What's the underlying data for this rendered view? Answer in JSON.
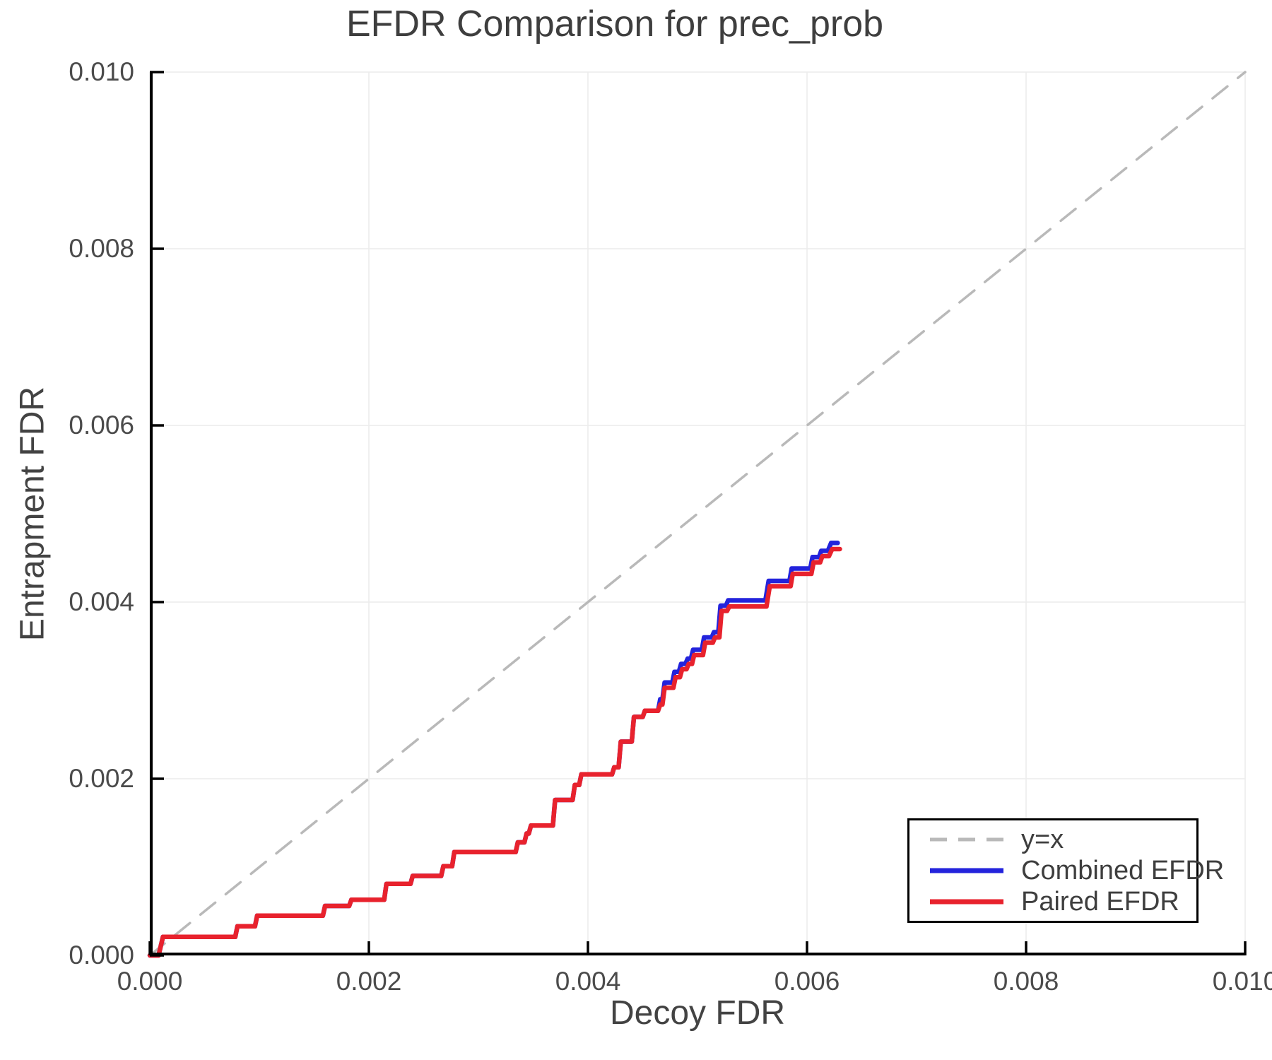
{
  "chart_data": {
    "type": "line",
    "title": "EFDR Comparison for prec_prob",
    "xlabel": "Decoy FDR",
    "ylabel": "Entrapment FDR",
    "xlim": [
      0,
      0.01
    ],
    "ylim": [
      0,
      0.01
    ],
    "xticks": [
      0,
      0.002,
      0.004,
      0.006,
      0.008,
      0.01
    ],
    "yticks": [
      0,
      0.002,
      0.004,
      0.006,
      0.008,
      0.01
    ],
    "xtick_labels": [
      "0.000",
      "0.002",
      "0.004",
      "0.006",
      "0.008",
      "0.010"
    ],
    "ytick_labels": [
      "0.000",
      "0.002",
      "0.004",
      "0.006",
      "0.008",
      "0.010"
    ],
    "grid": true,
    "legend_position": "bottom-right",
    "colors": {
      "grid": "#ececec",
      "spine": "#000000",
      "identity": "#b9b9b9",
      "combined": "#2323dc",
      "paired": "#e8222d",
      "text": "#3e3e3e"
    },
    "series": [
      {
        "name": "y=x",
        "style": "dashed",
        "color": "#b9b9b9",
        "points": [
          [
            0,
            0
          ],
          [
            0.01,
            0.01
          ]
        ]
      },
      {
        "name": "Combined EFDR",
        "style": "solid",
        "color": "#2323dc",
        "points": [
          [
            0.0,
            0.0
          ],
          [
            8e-05,
            0.0
          ],
          [
            0.00012,
            0.00021
          ],
          [
            0.00078,
            0.00021
          ],
          [
            0.0008,
            0.00033
          ],
          [
            0.00096,
            0.00033
          ],
          [
            0.00098,
            0.00045
          ],
          [
            0.00158,
            0.00045
          ],
          [
            0.0016,
            0.00056
          ],
          [
            0.00182,
            0.00056
          ],
          [
            0.00184,
            0.00063
          ],
          [
            0.00214,
            0.00063
          ],
          [
            0.00216,
            0.00081
          ],
          [
            0.00238,
            0.00081
          ],
          [
            0.0024,
            0.0009
          ],
          [
            0.00266,
            0.0009
          ],
          [
            0.00268,
            0.00101
          ],
          [
            0.00276,
            0.00101
          ],
          [
            0.00278,
            0.00117
          ],
          [
            0.00334,
            0.00117
          ],
          [
            0.00336,
            0.00128
          ],
          [
            0.00342,
            0.00128
          ],
          [
            0.00344,
            0.00138
          ],
          [
            0.00346,
            0.00138
          ],
          [
            0.00348,
            0.00147
          ],
          [
            0.00368,
            0.00147
          ],
          [
            0.0037,
            0.00176
          ],
          [
            0.00386,
            0.00176
          ],
          [
            0.00388,
            0.00193
          ],
          [
            0.00392,
            0.00193
          ],
          [
            0.00394,
            0.00205
          ],
          [
            0.00422,
            0.00205
          ],
          [
            0.00424,
            0.00213
          ],
          [
            0.00428,
            0.00213
          ],
          [
            0.0043,
            0.00242
          ],
          [
            0.0044,
            0.00242
          ],
          [
            0.00442,
            0.0027
          ],
          [
            0.0045,
            0.0027
          ],
          [
            0.00452,
            0.00277
          ],
          [
            0.00464,
            0.00277
          ],
          [
            0.00466,
            0.0029
          ],
          [
            0.00468,
            0.0029
          ],
          [
            0.0047,
            0.00309
          ],
          [
            0.00477,
            0.00309
          ],
          [
            0.00479,
            0.00321
          ],
          [
            0.00483,
            0.00321
          ],
          [
            0.00485,
            0.0033
          ],
          [
            0.00489,
            0.0033
          ],
          [
            0.00491,
            0.00336
          ],
          [
            0.00494,
            0.00336
          ],
          [
            0.00496,
            0.00346
          ],
          [
            0.00504,
            0.00346
          ],
          [
            0.00506,
            0.0036
          ],
          [
            0.00513,
            0.0036
          ],
          [
            0.00515,
            0.00366
          ],
          [
            0.00519,
            0.00366
          ],
          [
            0.00521,
            0.00396
          ],
          [
            0.00526,
            0.00396
          ],
          [
            0.00528,
            0.00402
          ],
          [
            0.00562,
            0.00402
          ],
          [
            0.00565,
            0.00424
          ],
          [
            0.00584,
            0.00424
          ],
          [
            0.00586,
            0.00438
          ],
          [
            0.00603,
            0.00438
          ],
          [
            0.00605,
            0.00451
          ],
          [
            0.00611,
            0.00451
          ],
          [
            0.00613,
            0.00458
          ],
          [
            0.00619,
            0.00458
          ],
          [
            0.00622,
            0.00467
          ],
          [
            0.00628,
            0.00467
          ]
        ]
      },
      {
        "name": "Paired EFDR",
        "style": "solid",
        "color": "#e8222d",
        "points": [
          [
            0.0,
            0.0
          ],
          [
            8e-05,
            0.0
          ],
          [
            0.00012,
            0.00021
          ],
          [
            0.00078,
            0.00021
          ],
          [
            0.0008,
            0.00033
          ],
          [
            0.00096,
            0.00033
          ],
          [
            0.00098,
            0.00045
          ],
          [
            0.00158,
            0.00045
          ],
          [
            0.0016,
            0.00056
          ],
          [
            0.00182,
            0.00056
          ],
          [
            0.00184,
            0.00063
          ],
          [
            0.00214,
            0.00063
          ],
          [
            0.00216,
            0.00081
          ],
          [
            0.00238,
            0.00081
          ],
          [
            0.0024,
            0.0009
          ],
          [
            0.00266,
            0.0009
          ],
          [
            0.00268,
            0.00101
          ],
          [
            0.00276,
            0.00101
          ],
          [
            0.00278,
            0.00117
          ],
          [
            0.00334,
            0.00117
          ],
          [
            0.00336,
            0.00128
          ],
          [
            0.00342,
            0.00128
          ],
          [
            0.00344,
            0.00138
          ],
          [
            0.00346,
            0.00138
          ],
          [
            0.00348,
            0.00147
          ],
          [
            0.00368,
            0.00147
          ],
          [
            0.0037,
            0.00176
          ],
          [
            0.00386,
            0.00176
          ],
          [
            0.00388,
            0.00193
          ],
          [
            0.00392,
            0.00193
          ],
          [
            0.00394,
            0.00205
          ],
          [
            0.00422,
            0.00205
          ],
          [
            0.00424,
            0.00213
          ],
          [
            0.00428,
            0.00213
          ],
          [
            0.0043,
            0.00242
          ],
          [
            0.0044,
            0.00242
          ],
          [
            0.00442,
            0.0027
          ],
          [
            0.0045,
            0.0027
          ],
          [
            0.00452,
            0.00277
          ],
          [
            0.00464,
            0.00277
          ],
          [
            0.00466,
            0.00284
          ],
          [
            0.00468,
            0.00284
          ],
          [
            0.0047,
            0.00303
          ],
          [
            0.00478,
            0.00303
          ],
          [
            0.0048,
            0.00315
          ],
          [
            0.00484,
            0.00315
          ],
          [
            0.00486,
            0.00324
          ],
          [
            0.0049,
            0.00324
          ],
          [
            0.00492,
            0.0033
          ],
          [
            0.00495,
            0.0033
          ],
          [
            0.00497,
            0.0034
          ],
          [
            0.00505,
            0.0034
          ],
          [
            0.00507,
            0.00354
          ],
          [
            0.00514,
            0.00354
          ],
          [
            0.00516,
            0.0036
          ],
          [
            0.0052,
            0.0036
          ],
          [
            0.00522,
            0.0039
          ],
          [
            0.00527,
            0.0039
          ],
          [
            0.00529,
            0.00395
          ],
          [
            0.00563,
            0.00395
          ],
          [
            0.00566,
            0.00418
          ],
          [
            0.00585,
            0.00418
          ],
          [
            0.00587,
            0.00432
          ],
          [
            0.00604,
            0.00432
          ],
          [
            0.00606,
            0.00445
          ],
          [
            0.00612,
            0.00445
          ],
          [
            0.00614,
            0.00452
          ],
          [
            0.0062,
            0.00452
          ],
          [
            0.00623,
            0.0046
          ],
          [
            0.0063,
            0.0046
          ]
        ]
      }
    ],
    "legend": [
      {
        "label": "y=x"
      },
      {
        "label": "Combined EFDR"
      },
      {
        "label": "Paired EFDR"
      }
    ]
  }
}
